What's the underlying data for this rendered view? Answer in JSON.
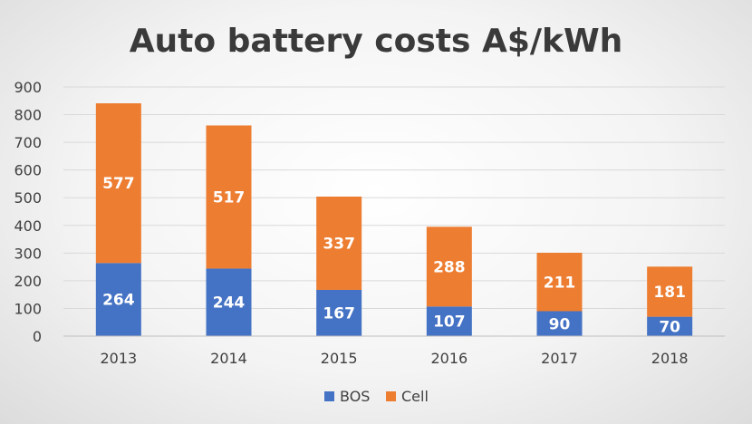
{
  "chart_data": {
    "type": "bar",
    "stacked": true,
    "title": "Auto battery costs A$/kWh",
    "xlabel": "",
    "ylabel": "",
    "categories": [
      "2013",
      "2014",
      "2015",
      "2016",
      "2017",
      "2018"
    ],
    "series": [
      {
        "name": "BOS",
        "color": "#4472c4",
        "values": [
          264,
          244,
          167,
          107,
          90,
          70
        ]
      },
      {
        "name": "Cell",
        "color": "#ed7d31",
        "values": [
          577,
          517,
          337,
          288,
          211,
          181
        ]
      }
    ],
    "ylim": [
      0,
      900
    ],
    "yticks": [
      0,
      100,
      200,
      300,
      400,
      500,
      600,
      700,
      800,
      900
    ],
    "grid": true,
    "legend_position": "bottom"
  }
}
